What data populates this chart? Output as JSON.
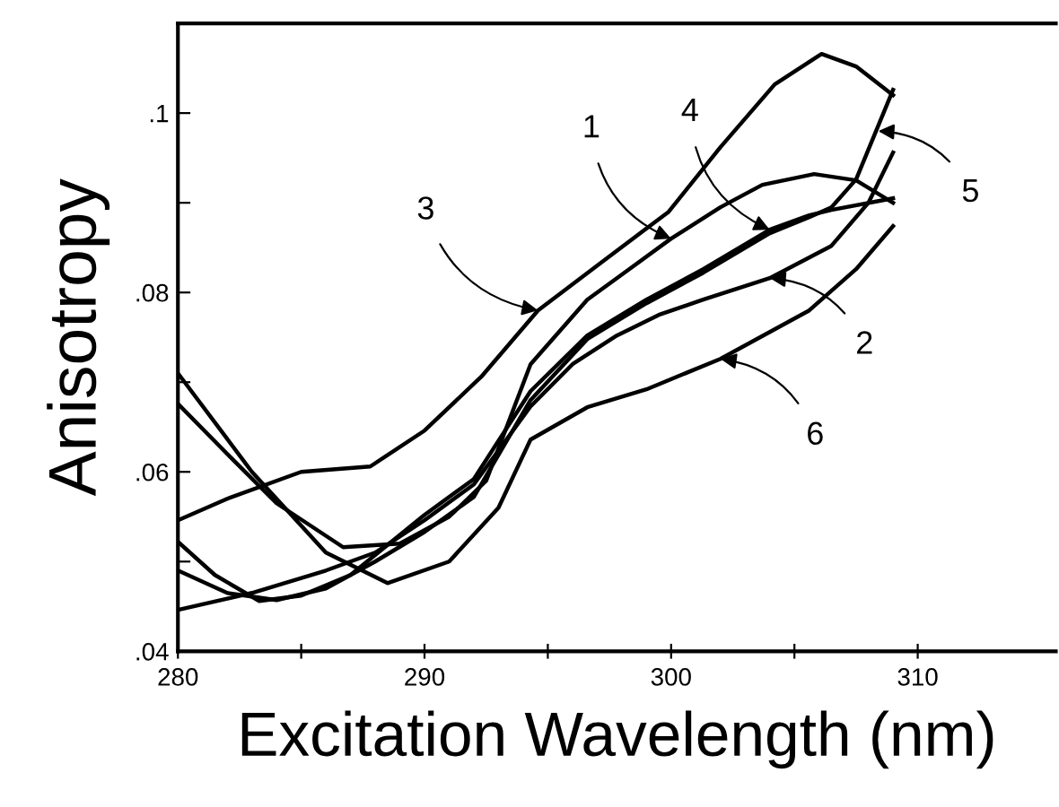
{
  "chart_data": {
    "type": "line",
    "xlabel": "Excitation Wavelength (nm)",
    "ylabel": "Anisotropy",
    "xlim": [
      280,
      315.6
    ],
    "ylim": [
      0.04,
      0.11
    ],
    "xticks": [
      280,
      {
        "value": 285,
        "label": null
      },
      290,
      {
        "value": 295,
        "label": null
      },
      300,
      {
        "value": 305,
        "label": null
      },
      310
    ],
    "yticks": [
      {
        "value": 0.04,
        "label": ".04"
      },
      {
        "value": 0.05,
        "label": null
      },
      {
        "value": 0.06,
        "label": ".06"
      },
      {
        "value": 0.07,
        "label": null
      },
      {
        "value": 0.08,
        "label": ".08"
      },
      {
        "value": 0.09,
        "label": null
      },
      {
        "value": 0.1,
        "label": ".1"
      }
    ],
    "grid": false,
    "legend": false,
    "marker": "none",
    "line_style": "solid",
    "series": [
      {
        "color": "#000000",
        "x": [
          280,
          282,
          284,
          286.7,
          289,
          291,
          292.5,
          294.3,
          296.6,
          298,
          300,
          302,
          303.7,
          305.8,
          307.5,
          309
        ],
        "values": [
          0.0676,
          0.062,
          0.0565,
          0.0516,
          0.052,
          0.055,
          0.059,
          0.072,
          0.0792,
          0.082,
          0.086,
          0.0895,
          0.092,
          0.0932,
          0.0925,
          0.09
        ]
      },
      {
        "color": "#000000",
        "x": [
          280,
          283,
          286,
          288,
          290,
          292,
          294.3,
          296,
          297.8,
          299.5,
          301.3,
          304,
          306.5,
          308,
          309
        ],
        "values": [
          0.0446,
          0.0465,
          0.049,
          0.051,
          0.0546,
          0.0586,
          0.0673,
          0.072,
          0.0752,
          0.0775,
          0.0792,
          0.0816,
          0.0852,
          0.09,
          0.0956
        ]
      },
      {
        "color": "#000000",
        "x": [
          280,
          282,
          285,
          287.8,
          290,
          292.3,
          294.6,
          297,
          299.9,
          302,
          304.2,
          306.1,
          307.5,
          309
        ],
        "values": [
          0.0546,
          0.057,
          0.06,
          0.0606,
          0.0646,
          0.0706,
          0.078,
          0.083,
          0.089,
          0.0962,
          0.1032,
          0.1066,
          0.1052,
          0.102
        ]
      },
      {
        "color": "#000000",
        "x": [
          280,
          281.5,
          283.3,
          285,
          287,
          290,
          292,
          294.3,
          296.6,
          299,
          301.3,
          304,
          305.6,
          306.5,
          309
        ],
        "values": [
          0.0522,
          0.0485,
          0.0456,
          0.0462,
          0.0485,
          0.0552,
          0.0592,
          0.069,
          0.0752,
          0.0792,
          0.0826,
          0.087,
          0.0886,
          0.0892,
          0.0905
        ]
      },
      {
        "color": "#000000",
        "x": [
          280,
          282,
          284,
          286,
          288,
          290,
          292,
          294.3,
          296.6,
          299,
          301.3,
          304,
          305.6,
          306.5,
          307.5,
          309
        ],
        "values": [
          0.049,
          0.0465,
          0.0457,
          0.047,
          0.05,
          0.0533,
          0.0572,
          0.068,
          0.0748,
          0.0788,
          0.0822,
          0.0866,
          0.0884,
          0.0895,
          0.0926,
          0.1026
        ]
      },
      {
        "color": "#000000",
        "x": [
          280,
          283,
          286,
          288.5,
          291,
          293,
          294.3,
          296.6,
          299,
          302,
          305.6,
          307.5,
          309
        ],
        "values": [
          0.071,
          0.06,
          0.051,
          0.0476,
          0.05,
          0.056,
          0.0636,
          0.0672,
          0.0692,
          0.0726,
          0.078,
          0.0826,
          0.0874
        ]
      }
    ],
    "annotations": [
      {
        "text": "3",
        "x": 294.6,
        "y": 0.078
      },
      {
        "text": "1",
        "x": 300,
        "y": 0.086
      },
      {
        "text": "4",
        "x": 304,
        "y": 0.087
      },
      {
        "text": "5",
        "x": 308.4,
        "y": 0.098
      },
      {
        "text": "2",
        "x": 304,
        "y": 0.0816
      },
      {
        "text": "6",
        "x": 302,
        "y": 0.0726
      }
    ]
  }
}
